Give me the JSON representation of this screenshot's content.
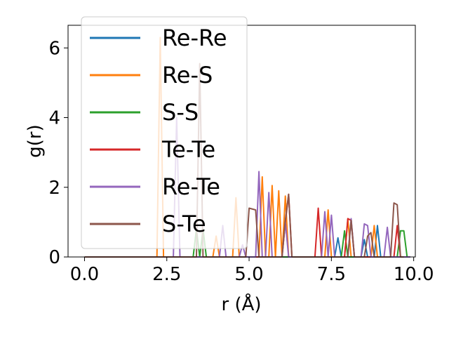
{
  "chart_data": {
    "type": "line",
    "xlabel": "r (Å)",
    "ylabel": "g(r)",
    "xlim": [
      -0.5,
      10.05
    ],
    "ylim": [
      0,
      6.65
    ],
    "xticks": [
      0.0,
      2.5,
      5.0,
      7.5,
      10.0
    ],
    "xtick_labels": [
      "0.0",
      "2.5",
      "5.0",
      "7.5",
      "10.0"
    ],
    "yticks": [
      0,
      2,
      4,
      6
    ],
    "ytick_labels": [
      "0",
      "2",
      "4",
      "6"
    ],
    "grid": false,
    "legend_position": "upper-left",
    "series": [
      {
        "name": "Re-Re",
        "color": "#1f77b4",
        "x": [
          0,
          7.3,
          7.6,
          7.7,
          7.8,
          8.4,
          8.5,
          8.6,
          8.8,
          8.9,
          9.0,
          9.9
        ],
        "y": [
          0,
          0,
          0,
          0.55,
          0,
          0,
          0.5,
          0,
          0,
          0.9,
          0,
          0
        ]
      },
      {
        "name": "Re-S",
        "color": "#ff7f0e",
        "x": [
          0,
          2.1,
          2.2,
          2.3,
          2.4,
          3.9,
          4.0,
          4.1,
          4.5,
          4.6,
          4.7,
          5.3,
          5.4,
          5.5,
          5.6,
          5.7,
          5.8,
          5.9,
          6.0,
          6.1,
          6.2,
          6.3,
          6.5,
          7.3,
          7.4,
          7.5,
          7.6,
          7.9,
          8.0,
          8.1,
          8.2,
          8.7,
          8.8,
          8.9,
          9.9
        ],
        "y": [
          0,
          0,
          0,
          6.3,
          0,
          0,
          0.6,
          0,
          0,
          1.7,
          0,
          0,
          2.3,
          0,
          0,
          2.05,
          0,
          1.9,
          0,
          1.75,
          0,
          0,
          0,
          0,
          1.35,
          0,
          0,
          0,
          1.1,
          0,
          0,
          0,
          0.9,
          0,
          0
        ]
      },
      {
        "name": "S-S",
        "color": "#2ca02c",
        "x": [
          0,
          3.2,
          3.3,
          3.4,
          3.5,
          3.6,
          3.7,
          7.8,
          7.9,
          8.0,
          9.5,
          9.6,
          9.7,
          9.8,
          9.9
        ],
        "y": [
          0,
          0,
          0,
          0.8,
          0,
          0.8,
          0,
          0,
          0.75,
          0,
          0,
          0.75,
          0.75,
          0,
          0
        ]
      },
      {
        "name": "Te-Te",
        "color": "#d62728",
        "x": [
          0,
          5.9,
          6.0,
          6.1,
          6.2,
          6.3,
          6.4,
          6.9,
          7.0,
          7.1,
          7.2,
          7.9,
          8.0,
          8.1,
          8.2,
          9.4,
          9.5,
          9.6,
          9.9
        ],
        "y": [
          0,
          0,
          0,
          1.0,
          1.8,
          0,
          0,
          0,
          0,
          1.4,
          0,
          0,
          1.1,
          1.05,
          0,
          0,
          0.9,
          0,
          0
        ]
      },
      {
        "name": "Re-Te",
        "color": "#9467bd",
        "x": [
          0,
          2.7,
          2.8,
          2.9,
          4.1,
          4.2,
          4.3,
          4.7,
          4.8,
          4.9,
          5.1,
          5.2,
          5.3,
          5.4,
          5.5,
          5.6,
          5.7,
          5.8,
          6.0,
          6.1,
          6.2,
          7.1,
          7.2,
          7.3,
          7.4,
          7.5,
          7.6,
          8.0,
          8.1,
          8.2,
          8.4,
          8.5,
          8.6,
          8.7,
          9.1,
          9.2,
          9.3,
          9.9
        ],
        "y": [
          0,
          0,
          4.0,
          0,
          0,
          0.9,
          0,
          0,
          0.35,
          0,
          0,
          0,
          2.45,
          0,
          0,
          1.85,
          0,
          0,
          0,
          1.0,
          0,
          0,
          0,
          1.3,
          0,
          1.2,
          0,
          0,
          1.1,
          0,
          0,
          0.95,
          0.9,
          0,
          0,
          0.85,
          0,
          0
        ]
      },
      {
        "name": "S-Te",
        "color": "#8c564b",
        "x": [
          0,
          3.3,
          3.4,
          3.5,
          3.6,
          4.8,
          4.9,
          5.0,
          5.2,
          5.3,
          6.0,
          6.1,
          6.2,
          6.3,
          8.0,
          8.1,
          8.2,
          8.3,
          8.5,
          8.6,
          8.7,
          8.8,
          9.3,
          9.4,
          9.5,
          9.6,
          9.7
        ],
        "y": [
          0,
          0,
          0,
          5.55,
          0,
          0,
          0,
          1.4,
          1.35,
          0,
          0,
          1.05,
          1.8,
          0,
          0,
          1.05,
          0,
          0,
          0,
          0.6,
          0.7,
          0,
          0,
          1.55,
          1.5,
          0,
          0
        ]
      }
    ]
  }
}
